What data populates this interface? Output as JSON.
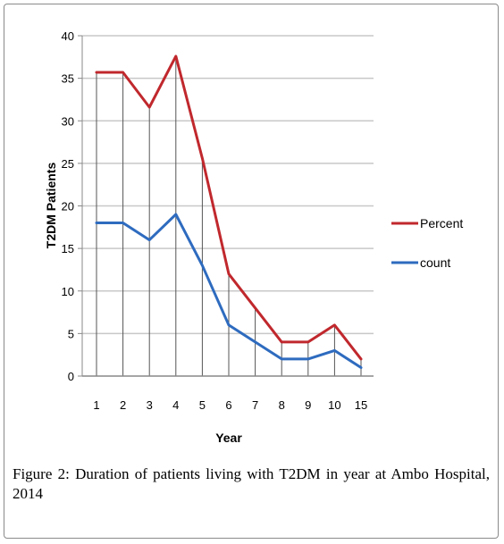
{
  "chart_data": {
    "type": "line",
    "categories": [
      "1",
      "2",
      "3",
      "4",
      "5",
      "6",
      "7",
      "8",
      "9",
      "10",
      "15"
    ],
    "series": [
      {
        "name": "Percent",
        "color": "#c0282d",
        "values": [
          35.7,
          35.7,
          31.6,
          37.6,
          25.6,
          12,
          8,
          4,
          4,
          6,
          2
        ]
      },
      {
        "name": "count",
        "color": "#2e6bbf",
        "values": [
          18,
          18,
          16,
          19,
          13,
          6,
          4,
          2,
          2,
          3,
          1
        ]
      }
    ],
    "title": "",
    "xlabel": "Year",
    "ylabel": "T2DM Patients",
    "ylim": [
      0,
      40
    ],
    "yticks": [
      0,
      5,
      10,
      15,
      20,
      25,
      30,
      35,
      40
    ],
    "grid": true,
    "drop_lines": true,
    "legend_position": "right"
  },
  "caption": "Figure 2: Duration of patients living with T2DM in year at Ambo Hospital, 2014"
}
